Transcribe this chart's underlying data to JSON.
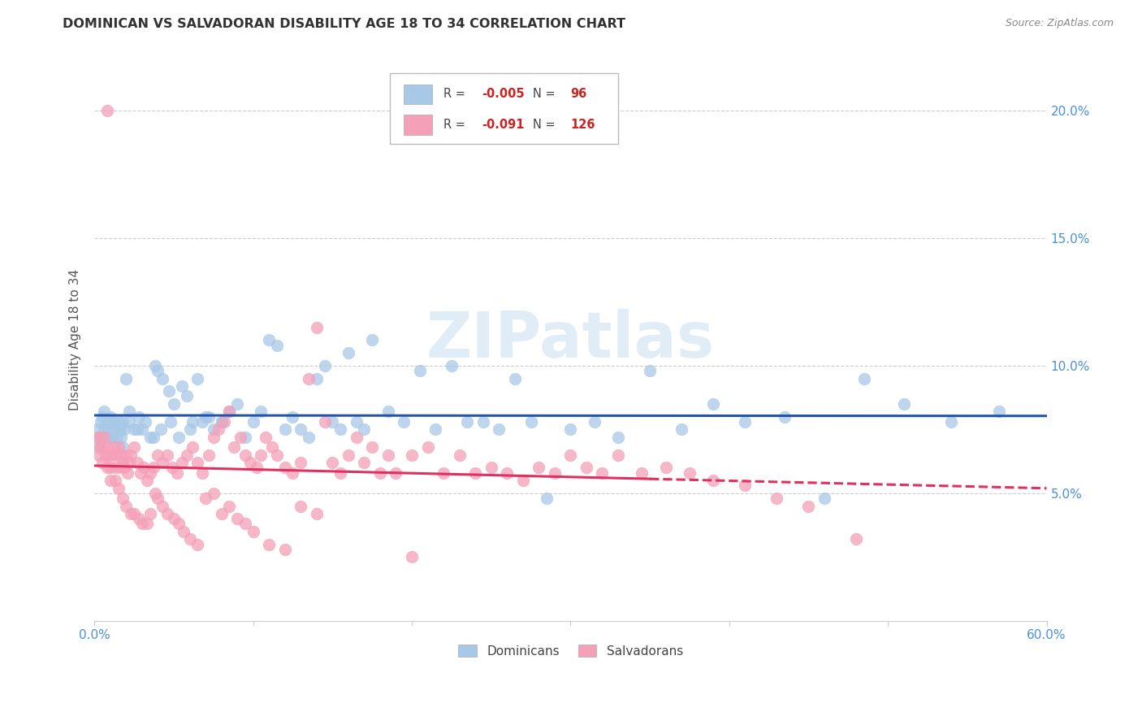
{
  "title": "DOMINICAN VS SALVADORAN DISABILITY AGE 18 TO 34 CORRELATION CHART",
  "source": "Source: ZipAtlas.com",
  "ylabel": "Disability Age 18 to 34",
  "xlim": [
    0.0,
    0.6
  ],
  "ylim": [
    0.0,
    0.22
  ],
  "xtick_positions": [
    0.0,
    0.1,
    0.2,
    0.3,
    0.4,
    0.5,
    0.6
  ],
  "xticklabels": [
    "0.0%",
    "",
    "",
    "",
    "",
    "",
    "60.0%"
  ],
  "ytick_positions": [
    0.05,
    0.1,
    0.15,
    0.2
  ],
  "yticklabels": [
    "5.0%",
    "10.0%",
    "15.0%",
    "20.0%"
  ],
  "blue_color": "#a8c8e8",
  "pink_color": "#f4a0b8",
  "blue_line_color": "#2255aa",
  "pink_line_color": "#e03060",
  "watermark": "ZIPatlas",
  "legend_R_blue": "-0.005",
  "legend_N_blue": "96",
  "legend_R_pink": "-0.091",
  "legend_N_pink": "126",
  "blue_R": -0.005,
  "pink_R": -0.091,
  "blue_x": [
    0.002,
    0.003,
    0.004,
    0.005,
    0.006,
    0.007,
    0.008,
    0.009,
    0.01,
    0.011,
    0.012,
    0.013,
    0.014,
    0.015,
    0.016,
    0.017,
    0.018,
    0.019,
    0.02,
    0.022,
    0.025,
    0.028,
    0.03,
    0.035,
    0.038,
    0.04,
    0.043,
    0.047,
    0.05,
    0.055,
    0.058,
    0.062,
    0.065,
    0.068,
    0.072,
    0.075,
    0.08,
    0.085,
    0.09,
    0.095,
    0.1,
    0.105,
    0.11,
    0.115,
    0.12,
    0.125,
    0.13,
    0.135,
    0.14,
    0.145,
    0.15,
    0.155,
    0.16,
    0.165,
    0.17,
    0.175,
    0.185,
    0.195,
    0.205,
    0.215,
    0.225,
    0.235,
    0.245,
    0.255,
    0.265,
    0.275,
    0.285,
    0.3,
    0.315,
    0.33,
    0.35,
    0.37,
    0.39,
    0.41,
    0.435,
    0.46,
    0.485,
    0.51,
    0.54,
    0.57,
    0.003,
    0.006,
    0.009,
    0.012,
    0.015,
    0.018,
    0.022,
    0.027,
    0.032,
    0.037,
    0.042,
    0.048,
    0.053,
    0.06,
    0.07,
    0.08
  ],
  "blue_y": [
    0.075,
    0.072,
    0.078,
    0.08,
    0.075,
    0.072,
    0.078,
    0.075,
    0.08,
    0.072,
    0.078,
    0.075,
    0.072,
    0.078,
    0.075,
    0.072,
    0.078,
    0.075,
    0.095,
    0.078,
    0.075,
    0.08,
    0.075,
    0.072,
    0.1,
    0.098,
    0.095,
    0.09,
    0.085,
    0.092,
    0.088,
    0.078,
    0.095,
    0.078,
    0.08,
    0.075,
    0.078,
    0.082,
    0.085,
    0.072,
    0.078,
    0.082,
    0.11,
    0.108,
    0.075,
    0.08,
    0.075,
    0.072,
    0.095,
    0.1,
    0.078,
    0.075,
    0.105,
    0.078,
    0.075,
    0.11,
    0.082,
    0.078,
    0.098,
    0.075,
    0.1,
    0.078,
    0.078,
    0.075,
    0.095,
    0.078,
    0.048,
    0.075,
    0.078,
    0.072,
    0.098,
    0.075,
    0.085,
    0.078,
    0.08,
    0.048,
    0.095,
    0.085,
    0.078,
    0.082,
    0.068,
    0.082,
    0.072,
    0.078,
    0.075,
    0.068,
    0.082,
    0.075,
    0.078,
    0.072,
    0.075,
    0.078,
    0.072,
    0.075,
    0.08,
    0.078
  ],
  "pink_x": [
    0.002,
    0.003,
    0.004,
    0.005,
    0.006,
    0.007,
    0.008,
    0.009,
    0.01,
    0.011,
    0.012,
    0.013,
    0.014,
    0.015,
    0.016,
    0.017,
    0.018,
    0.019,
    0.02,
    0.021,
    0.022,
    0.023,
    0.025,
    0.027,
    0.029,
    0.031,
    0.033,
    0.035,
    0.037,
    0.04,
    0.043,
    0.046,
    0.049,
    0.052,
    0.055,
    0.058,
    0.062,
    0.065,
    0.068,
    0.072,
    0.075,
    0.078,
    0.082,
    0.085,
    0.088,
    0.092,
    0.095,
    0.098,
    0.102,
    0.105,
    0.108,
    0.112,
    0.115,
    0.12,
    0.125,
    0.13,
    0.135,
    0.14,
    0.145,
    0.15,
    0.155,
    0.16,
    0.165,
    0.17,
    0.175,
    0.18,
    0.185,
    0.19,
    0.2,
    0.21,
    0.22,
    0.23,
    0.24,
    0.25,
    0.26,
    0.27,
    0.28,
    0.29,
    0.3,
    0.31,
    0.32,
    0.33,
    0.345,
    0.36,
    0.375,
    0.39,
    0.41,
    0.43,
    0.45,
    0.48,
    0.003,
    0.005,
    0.008,
    0.01,
    0.013,
    0.015,
    0.018,
    0.02,
    0.023,
    0.025,
    0.028,
    0.03,
    0.033,
    0.035,
    0.038,
    0.04,
    0.043,
    0.046,
    0.05,
    0.053,
    0.056,
    0.06,
    0.065,
    0.07,
    0.075,
    0.08,
    0.085,
    0.09,
    0.095,
    0.1,
    0.11,
    0.12,
    0.13,
    0.14,
    0.008,
    0.2
  ],
  "pink_y": [
    0.072,
    0.068,
    0.072,
    0.068,
    0.072,
    0.065,
    0.068,
    0.065,
    0.06,
    0.065,
    0.068,
    0.06,
    0.065,
    0.068,
    0.06,
    0.065,
    0.062,
    0.06,
    0.065,
    0.058,
    0.062,
    0.065,
    0.068,
    0.062,
    0.058,
    0.06,
    0.055,
    0.058,
    0.06,
    0.065,
    0.062,
    0.065,
    0.06,
    0.058,
    0.062,
    0.065,
    0.068,
    0.062,
    0.058,
    0.065,
    0.072,
    0.075,
    0.078,
    0.082,
    0.068,
    0.072,
    0.065,
    0.062,
    0.06,
    0.065,
    0.072,
    0.068,
    0.065,
    0.06,
    0.058,
    0.062,
    0.095,
    0.115,
    0.078,
    0.062,
    0.058,
    0.065,
    0.072,
    0.062,
    0.068,
    0.058,
    0.065,
    0.058,
    0.065,
    0.068,
    0.058,
    0.065,
    0.058,
    0.06,
    0.058,
    0.055,
    0.06,
    0.058,
    0.065,
    0.06,
    0.058,
    0.065,
    0.058,
    0.06,
    0.058,
    0.055,
    0.053,
    0.048,
    0.045,
    0.032,
    0.065,
    0.062,
    0.06,
    0.055,
    0.055,
    0.052,
    0.048,
    0.045,
    0.042,
    0.042,
    0.04,
    0.038,
    0.038,
    0.042,
    0.05,
    0.048,
    0.045,
    0.042,
    0.04,
    0.038,
    0.035,
    0.032,
    0.03,
    0.048,
    0.05,
    0.042,
    0.045,
    0.04,
    0.038,
    0.035,
    0.03,
    0.028,
    0.045,
    0.042,
    0.2,
    0.025
  ]
}
